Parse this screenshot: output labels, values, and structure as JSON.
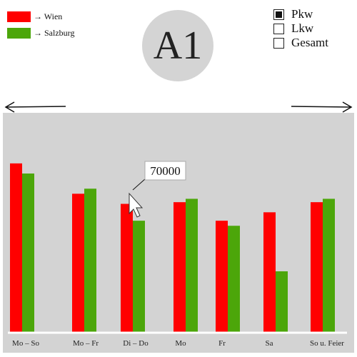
{
  "legend": [
    {
      "label": "→ Wien",
      "color": "#ff0000"
    },
    {
      "label": "→ Salzburg",
      "color": "#4ca60a"
    }
  ],
  "badge": {
    "text": "A1"
  },
  "vehicle_options": [
    {
      "label": "Pkw",
      "checked": true
    },
    {
      "label": "Lkw",
      "checked": false
    },
    {
      "label": "Gesamt",
      "checked": false
    }
  ],
  "navigation": {
    "prev_icon": "arrow-left-icon",
    "next_icon": "arrow-right-icon"
  },
  "tooltip": {
    "text": "70000"
  },
  "colors": {
    "plot_background": "#d3d3d3",
    "wien": "#ff0000",
    "salzburg": "#4ca60a"
  },
  "chart_data": {
    "type": "bar",
    "categories": [
      "Mo – So",
      "Mo – Fr",
      "Di – Do",
      "Mo",
      "Fr",
      "Sa",
      "So u. Feier"
    ],
    "series": [
      {
        "name": "→ Wien",
        "values": [
          100000,
          82000,
          76000,
          77000,
          66000,
          71000,
          77000
        ]
      },
      {
        "name": "→ Salzburg",
        "values": [
          94000,
          85000,
          66000,
          79000,
          63000,
          36000,
          79000
        ]
      }
    ],
    "ylim": [
      0,
      130000
    ],
    "xlabel": "",
    "ylabel": "",
    "grid": false,
    "legend_position": "top-left"
  }
}
